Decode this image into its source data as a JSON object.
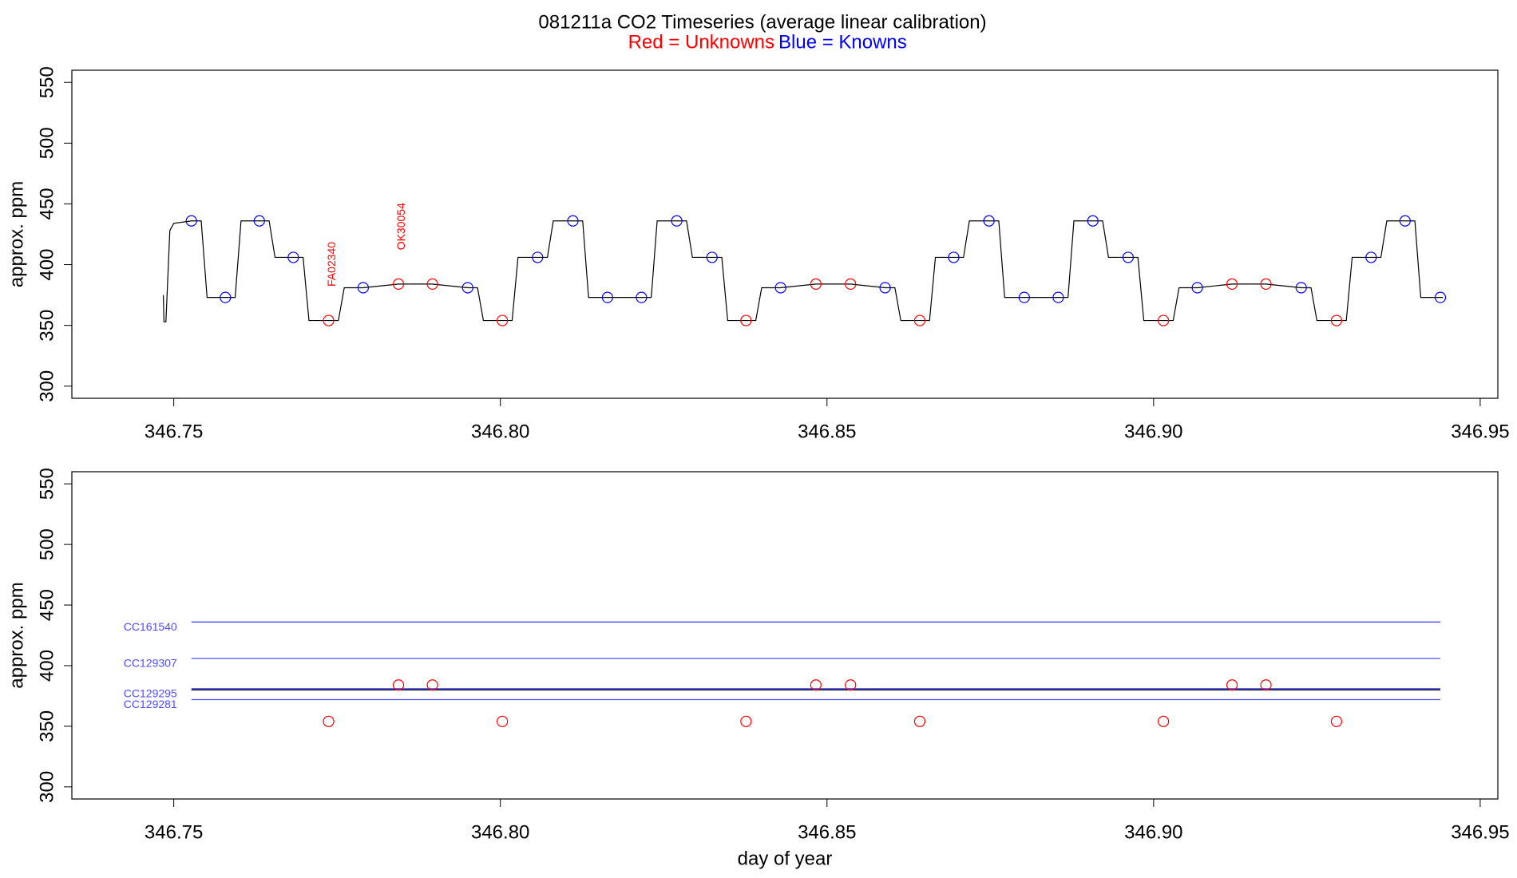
{
  "chart_data": [
    {
      "type": "line",
      "title": "081211a   CO2 Timeseries (average linear calibration)",
      "ylabel": "approx. ppm",
      "xlim": [
        346.7344,
        346.9527
      ],
      "ylim": [
        290,
        560
      ],
      "xticks": [
        346.75,
        {
          "value": 346.8,
          "label": "346.80"
        },
        346.85,
        {
          "value": 346.9,
          "label": "346.90"
        },
        346.95
      ],
      "yticks": [
        300,
        350,
        400,
        450,
        500,
        550
      ],
      "series": [
        {
          "type": "line",
          "color": "#000000",
          "x": [
            346.7484,
            346.7485,
            346.7488,
            346.7494,
            346.75,
            346.7527,
            346.7542,
            346.7551,
            346.7579,
            346.7594,
            346.7603,
            346.7631,
            346.7646,
            346.7655,
            346.7683,
            346.7698,
            346.7707,
            346.7737,
            346.7752,
            346.7761,
            346.779,
            346.7844,
            346.7896,
            346.795,
            346.7965,
            346.7974,
            346.8003,
            346.8018,
            346.8027,
            346.8057,
            346.8072,
            346.8081,
            346.8111,
            346.8126,
            346.8135,
            346.8164,
            346.8216,
            346.8231,
            346.824,
            346.827,
            346.8285,
            346.8294,
            346.8324,
            346.8339,
            346.8348,
            346.8376,
            346.8391,
            346.84,
            346.8429,
            346.8483,
            346.8536,
            346.8589,
            346.8604,
            346.8613,
            346.8642,
            346.8657,
            346.8666,
            346.8694,
            346.8709,
            346.8718,
            346.8748,
            346.8763,
            346.8772,
            346.8802,
            346.8854,
            346.8869,
            346.8878,
            346.8907,
            346.8922,
            346.8931,
            346.8961,
            346.8976,
            346.8985,
            346.9015,
            346.903,
            346.9039,
            346.9067,
            346.912,
            346.9172,
            346.9226,
            346.9241,
            346.925,
            346.928,
            346.9295,
            346.9304,
            346.9333,
            346.9348,
            346.9357,
            346.9385,
            346.94,
            346.9409,
            346.9439,
            346.9443
          ],
          "values": [
            375,
            353,
            353,
            428,
            434,
            436,
            436,
            373,
            373,
            373,
            436,
            436,
            436,
            406,
            406,
            406,
            354,
            354,
            354,
            381,
            381,
            384,
            384,
            381,
            381,
            354,
            354,
            354,
            406,
            406,
            406,
            436,
            436,
            436,
            373,
            373,
            373,
            373,
            436,
            436,
            436,
            406,
            406,
            406,
            354,
            354,
            354,
            381,
            381,
            384,
            384,
            381,
            381,
            354,
            354,
            354,
            406,
            406,
            406,
            436,
            436,
            436,
            373,
            373,
            373,
            373,
            436,
            436,
            436,
            406,
            406,
            406,
            354,
            354,
            354,
            381,
            381,
            384,
            384,
            381,
            381,
            354,
            354,
            354,
            406,
            406,
            406,
            436,
            436,
            436,
            373,
            373,
            373
          ]
        },
        {
          "type": "scatter",
          "name": "Red = Unknowns",
          "color": "#ff0000",
          "x": [
            346.7737,
            346.7844,
            346.7896,
            346.8003,
            346.8376,
            346.8483,
            346.8536,
            346.8642,
            346.9015,
            346.912,
            346.9172,
            346.928
          ],
          "values": [
            354,
            384,
            384,
            354,
            354,
            384,
            384,
            354,
            354,
            384,
            384,
            354
          ]
        },
        {
          "type": "scatter",
          "name": "Blue = Knowns",
          "color": "#0000ff",
          "x": [
            346.7527,
            346.7579,
            346.7631,
            346.7683,
            346.779,
            346.795,
            346.8057,
            346.8111,
            346.8164,
            346.8216,
            346.827,
            346.8324,
            346.8429,
            346.8589,
            346.8694,
            346.8748,
            346.8802,
            346.8854,
            346.8907,
            346.8961,
            346.9067,
            346.9226,
            346.9333,
            346.9385,
            346.9439
          ],
          "values": [
            436,
            373,
            436,
            406,
            381,
            381,
            406,
            436,
            373,
            373,
            436,
            406,
            381,
            381,
            406,
            436,
            373,
            373,
            436,
            406,
            381,
            381,
            406,
            436,
            373
          ]
        }
      ],
      "annotations": [
        {
          "text": "FA02340",
          "x": 346.7743,
          "y": 382,
          "color": "#ff0000"
        },
        {
          "text": "OK30054",
          "x": 346.7849,
          "y": 412,
          "color": "#ff0000"
        }
      ]
    },
    {
      "type": "scatter",
      "xlabel": "day of year",
      "ylabel": "approx. ppm",
      "xlim": [
        346.7344,
        346.9527
      ],
      "ylim": [
        290,
        560
      ],
      "xticks": [
        346.75,
        {
          "value": 346.8,
          "label": "346.80"
        },
        346.85,
        {
          "value": 346.9,
          "label": "346.90"
        },
        346.95
      ],
      "yticks": [
        300,
        350,
        400,
        450,
        500,
        550
      ],
      "hlines": [
        {
          "label": "CC161540",
          "color": "#4d4dff",
          "y": 436,
          "x": [
            346.7527,
            346.9439
          ]
        },
        {
          "label": "CC129307",
          "color": "#4d4dff",
          "y": 406,
          "x": [
            346.7527,
            346.9439
          ]
        },
        {
          "label": "CC129295",
          "color": "#4d4dff",
          "y": 381,
          "x": [
            346.7527,
            346.9439
          ]
        },
        {
          "label": "CC129281",
          "color": "#4d4dff",
          "y": 372,
          "x": [
            346.7527,
            346.9439
          ]
        },
        {
          "color": "#000000",
          "y": 380,
          "x": [
            346.7527,
            346.9439
          ]
        }
      ],
      "series": [
        {
          "type": "scatter",
          "color": "#ff0000",
          "x": [
            346.7737,
            346.7844,
            346.7896,
            346.8003,
            346.8376,
            346.8483,
            346.8536,
            346.8642,
            346.9015,
            346.912,
            346.9172,
            346.928
          ],
          "values": [
            354,
            384,
            384,
            354,
            354,
            384,
            384,
            354,
            354,
            384,
            384,
            354
          ]
        }
      ]
    }
  ]
}
